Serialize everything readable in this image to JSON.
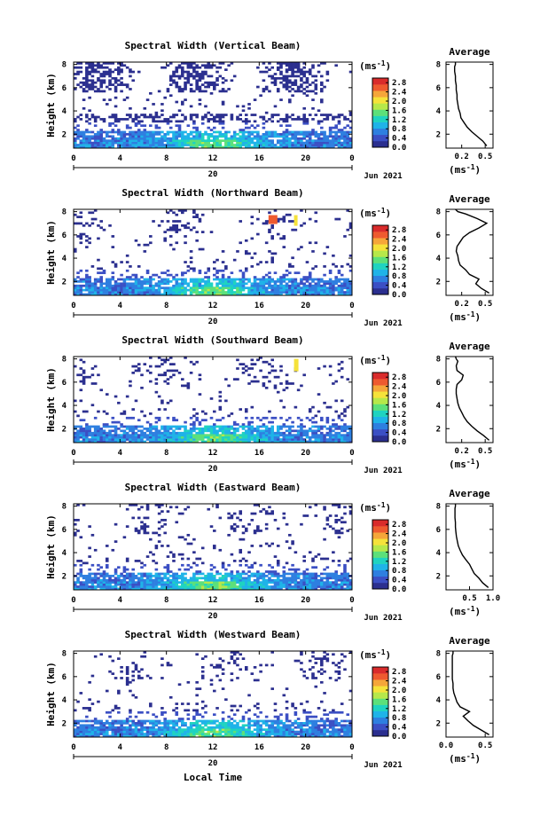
{
  "figure": {
    "xaxis_label": "Local Time",
    "colorbar_unit": "(ms",
    "unit_exp": "-1",
    "avg_unit": "(ms",
    "colors": {
      "colormap": [
        "#2b2f8f",
        "#3b4fc4",
        "#2e7fe0",
        "#1fb3e8",
        "#1fd3c0",
        "#5ce07a",
        "#b6e84a",
        "#f5e23a",
        "#f5a63a",
        "#ee5a2f",
        "#d92b2b"
      ],
      "background": "#ffffff",
      "axis": "#000000"
    }
  },
  "chart_data": [
    {
      "type": "heatmap",
      "title": "Spectral Width (Vertical Beam)",
      "ylabel": "Height (km)",
      "xticks": [
        "0",
        "4",
        "8",
        "12",
        "16",
        "20",
        "0"
      ],
      "yticks": [
        "2",
        "4",
        "6",
        "8"
      ],
      "xlim": [
        0,
        24
      ],
      "ylim": [
        0.8,
        8.2
      ],
      "date_tick_label": "20",
      "date_label": "Jun 2021",
      "colorbar": {
        "ticks": [
          "0.0",
          "0.4",
          "0.8",
          "1.2",
          "1.6",
          "2.0",
          "2.4",
          "2.8"
        ],
        "range": [
          0.0,
          3.0
        ]
      },
      "average": {
        "title": "Average",
        "xlim": [
          0.0,
          0.6
        ],
        "xticks": [
          "0.2",
          "0.5"
        ],
        "x": [
          0.52,
          0.47,
          0.4,
          0.33,
          0.27,
          0.23,
          0.19,
          0.18,
          0.16,
          0.15,
          0.14,
          0.14,
          0.13,
          0.13,
          0.12,
          0.12,
          0.11,
          0.11,
          0.12,
          0.12
        ],
        "y": [
          1.0,
          1.4,
          1.8,
          2.2,
          2.6,
          3.0,
          3.4,
          3.8,
          4.2,
          4.6,
          5.0,
          5.4,
          5.8,
          6.2,
          6.6,
          7.0,
          7.4,
          7.8,
          8.0,
          8.2
        ]
      }
    },
    {
      "type": "heatmap",
      "title": "Spectral Width (Northward Beam)",
      "ylabel": "Height (km)",
      "xticks": [
        "0",
        "4",
        "8",
        "12",
        "16",
        "20",
        "0"
      ],
      "yticks": [
        "2",
        "4",
        "6",
        "8"
      ],
      "xlim": [
        0,
        24
      ],
      "ylim": [
        0.8,
        8.2
      ],
      "date_tick_label": "20",
      "date_label": "Jun 2021",
      "colorbar": {
        "ticks": [
          "0.0",
          "0.4",
          "0.8",
          "1.2",
          "1.6",
          "2.0",
          "2.4",
          "2.8"
        ],
        "range": [
          0.0,
          3.0
        ]
      },
      "average": {
        "title": "Average",
        "xlim": [
          0.0,
          0.6
        ],
        "xticks": [
          "0.2",
          "0.5"
        ],
        "x": [
          0.55,
          0.45,
          0.38,
          0.42,
          0.3,
          0.25,
          0.18,
          0.16,
          0.15,
          0.13,
          0.14,
          0.18,
          0.22,
          0.3,
          0.42,
          0.52,
          0.4,
          0.25,
          0.15,
          0.12
        ],
        "y": [
          1.0,
          1.4,
          1.8,
          2.2,
          2.6,
          3.0,
          3.4,
          3.8,
          4.2,
          4.6,
          5.0,
          5.4,
          5.8,
          6.2,
          6.6,
          7.0,
          7.4,
          7.8,
          8.0,
          8.2
        ]
      }
    },
    {
      "type": "heatmap",
      "title": "Spectral Width (Southward Beam)",
      "ylabel": "Height (km)",
      "xticks": [
        "0",
        "4",
        "8",
        "12",
        "16",
        "20",
        "0"
      ],
      "yticks": [
        "2",
        "4",
        "6",
        "8"
      ],
      "xlim": [
        0,
        24
      ],
      "ylim": [
        0.8,
        8.2
      ],
      "date_tick_label": "20",
      "date_label": "Jun 2021",
      "colorbar": {
        "ticks": [
          "0.0",
          "0.4",
          "0.8",
          "1.2",
          "1.6",
          "2.0",
          "2.4",
          "2.8"
        ],
        "range": [
          0.0,
          3.0
        ]
      },
      "average": {
        "title": "Average",
        "xlim": [
          0.0,
          0.6
        ],
        "xticks": [
          "0.2",
          "0.5"
        ],
        "x": [
          0.55,
          0.48,
          0.4,
          0.33,
          0.27,
          0.23,
          0.2,
          0.17,
          0.15,
          0.14,
          0.13,
          0.13,
          0.14,
          0.2,
          0.22,
          0.14,
          0.13,
          0.15,
          0.13,
          0.12
        ],
        "y": [
          1.0,
          1.4,
          1.8,
          2.2,
          2.6,
          3.0,
          3.4,
          3.8,
          4.2,
          4.6,
          5.0,
          5.4,
          5.8,
          6.2,
          6.6,
          7.0,
          7.4,
          7.8,
          8.0,
          8.2
        ]
      }
    },
    {
      "type": "heatmap",
      "title": "Spectral Width (Eastward Beam)",
      "ylabel": "Height (km)",
      "xticks": [
        "0",
        "4",
        "8",
        "12",
        "16",
        "20",
        "0"
      ],
      "yticks": [
        "2",
        "4",
        "6",
        "8"
      ],
      "xlim": [
        0,
        24
      ],
      "ylim": [
        0.8,
        8.2
      ],
      "date_tick_label": "20",
      "date_label": "Jun 2021",
      "colorbar": {
        "ticks": [
          "0.0",
          "0.4",
          "0.8",
          "1.2",
          "1.6",
          "2.0",
          "2.4",
          "2.8"
        ],
        "range": [
          0.0,
          3.0
        ]
      },
      "average": {
        "title": "Average",
        "xlim": [
          0.0,
          1.0
        ],
        "xticks": [
          "0.5",
          "1.0"
        ],
        "x": [
          0.9,
          0.78,
          0.7,
          0.6,
          0.55,
          0.5,
          0.42,
          0.35,
          0.3,
          0.26,
          0.24,
          0.22,
          0.21,
          0.2,
          0.2,
          0.19,
          0.19,
          0.19,
          0.2,
          0.2
        ],
        "y": [
          1.0,
          1.4,
          1.8,
          2.2,
          2.6,
          3.0,
          3.4,
          3.8,
          4.2,
          4.6,
          5.0,
          5.4,
          5.8,
          6.2,
          6.6,
          7.0,
          7.4,
          7.8,
          8.0,
          8.2
        ]
      }
    },
    {
      "type": "heatmap",
      "title": "Spectral Width (Westward Beam)",
      "ylabel": "Height (km)",
      "xticks": [
        "0",
        "4",
        "8",
        "12",
        "16",
        "20",
        "0"
      ],
      "yticks": [
        "2",
        "4",
        "6",
        "8"
      ],
      "xlim": [
        0,
        24
      ],
      "ylim": [
        0.8,
        8.2
      ],
      "date_tick_label": "20",
      "date_label": "Jun 2021",
      "colorbar": {
        "ticks": [
          "0.0",
          "0.4",
          "0.8",
          "1.2",
          "1.6",
          "2.0",
          "2.4",
          "2.8"
        ],
        "range": [
          0.0,
          3.0
        ]
      },
      "average": {
        "title": "Average",
        "xlim": [
          0.0,
          0.6
        ],
        "xticks": [
          "0.0",
          "0.5"
        ],
        "x": [
          0.55,
          0.45,
          0.35,
          0.28,
          0.22,
          0.3,
          0.18,
          0.14,
          0.12,
          0.1,
          0.09,
          0.09,
          0.08,
          0.08,
          0.08,
          0.08,
          0.08,
          0.08,
          0.09,
          0.09
        ],
        "y": [
          1.0,
          1.4,
          1.8,
          2.2,
          2.6,
          3.0,
          3.4,
          3.8,
          4.2,
          4.6,
          5.0,
          5.4,
          5.8,
          6.2,
          6.6,
          7.0,
          7.4,
          7.8,
          8.0,
          8.2
        ]
      }
    }
  ]
}
